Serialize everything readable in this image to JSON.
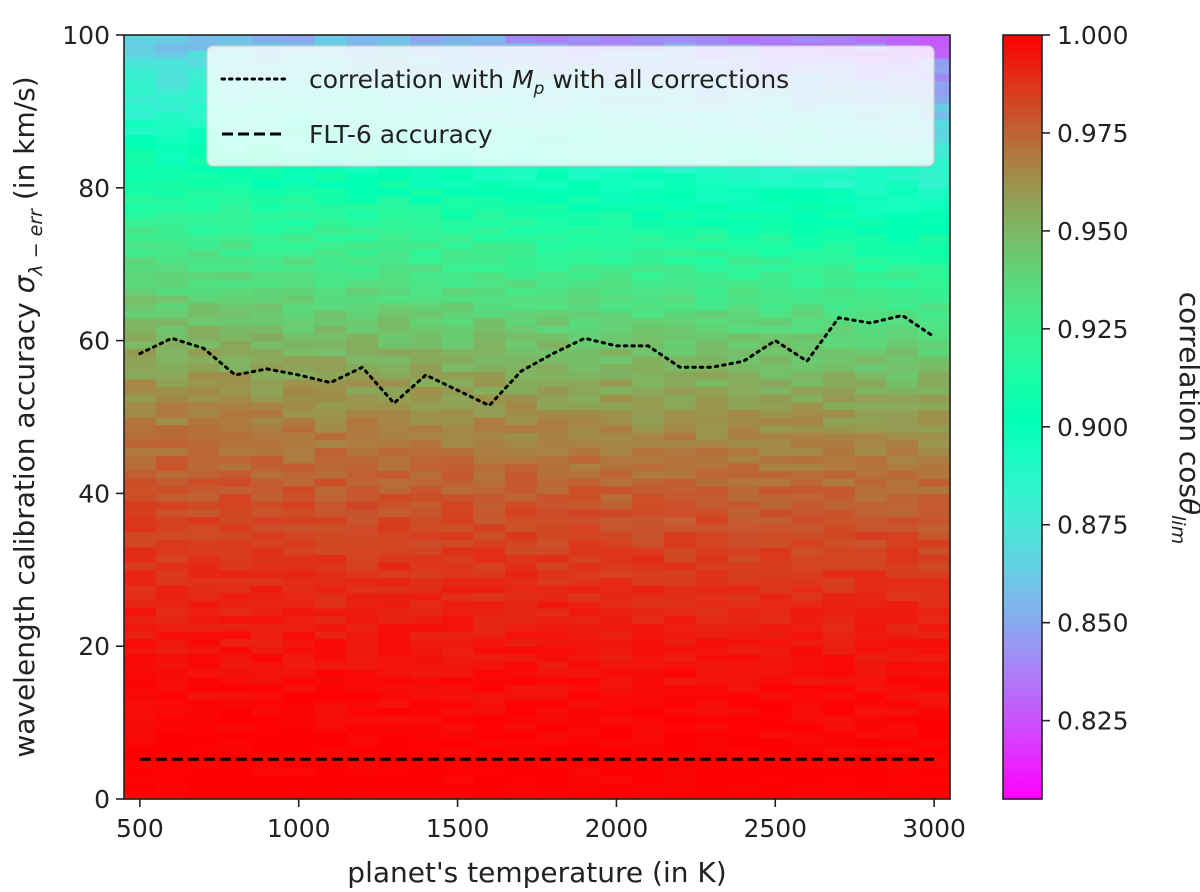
{
  "chart_data": {
    "type": "heatmap",
    "title": "",
    "xlabel": "planet's temperature (in K)",
    "ylabel": "wavelength calibration accuracy",
    "ylabel_symbol": "σ",
    "ylabel_subscript": "λ − err",
    "ylabel_unit": " (in km/s)",
    "xlim": [
      450,
      3050
    ],
    "ylim": [
      0,
      100
    ],
    "x_ticks": [
      500,
      1000,
      1500,
      2000,
      2500,
      3000
    ],
    "y_ticks": [
      0,
      20,
      40,
      60,
      80,
      100
    ],
    "grid": false,
    "colormap": "rainbow",
    "colorbar": {
      "label": "correlation cos",
      "label_symbol": "θ",
      "label_subscript": "lim",
      "range": [
        0.805,
        1.0
      ],
      "ticks": [
        "0.825",
        "0.850",
        "0.875",
        "0.900",
        "0.925",
        "0.950",
        "0.975",
        "1.000"
      ]
    },
    "heatmap_grid": {
      "x_start": 450,
      "x_step": 100,
      "x_count": 26,
      "y_start": 0,
      "y_step": 1,
      "y_count": 100
    },
    "series": [
      {
        "name": "correlation with M_p with all corrections",
        "label_prefix": "correlation with ",
        "label_symbol": "M",
        "label_subscript": "p",
        "label_suffix": " with all corrections",
        "style": "dotted",
        "x": [
          500,
          600,
          700,
          800,
          900,
          1000,
          1100,
          1200,
          1300,
          1400,
          1500,
          1600,
          1700,
          1800,
          1900,
          2000,
          2100,
          2200,
          2300,
          2400,
          2500,
          2600,
          2700,
          2800,
          2900,
          3000
        ],
        "y": [
          58.3,
          60.3,
          59.0,
          55.5,
          56.3,
          55.5,
          54.5,
          56.5,
          51.8,
          55.5,
          53.5,
          51.5,
          56.0,
          58.3,
          60.3,
          59.3,
          59.3,
          56.5,
          56.5,
          57.3,
          60.0,
          57.3,
          63.0,
          62.3,
          63.3,
          60.5
        ]
      },
      {
        "name": "FLT-6 accuracy",
        "style": "dashed",
        "x": [
          500,
          3000
        ],
        "y": [
          5.2,
          5.2
        ]
      }
    ],
    "legend_position": "top-right"
  }
}
